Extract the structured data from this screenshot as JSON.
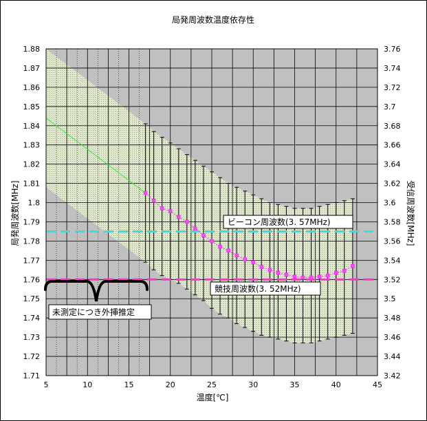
{
  "chart_data": {
    "type": "line",
    "title": "局発周波数温度依存性",
    "xlabel": "温度[℃]",
    "ylabel": "局発周波数[MHz]",
    "y2label": "受信周波数[MHz]",
    "xlim": [
      5,
      45
    ],
    "ylim": [
      1.71,
      1.88
    ],
    "y2lim": [
      3.42,
      3.76
    ],
    "xticks": [
      "5",
      "10",
      "15",
      "20",
      "25",
      "30",
      "35",
      "40",
      "45"
    ],
    "yticks": [
      "1.71",
      "1.72",
      "1.73",
      "1.74",
      "1.75",
      "1.76",
      "1.77",
      "1.78",
      "1.79",
      "1.8",
      "1.81",
      "1.82",
      "1.83",
      "1.84",
      "1.85",
      "1.86",
      "1.87",
      "1.88"
    ],
    "y2ticks": [
      "3.42",
      "3.44",
      "3.46",
      "3.48",
      "3.5",
      "3.52",
      "3.54",
      "3.56",
      "3.58",
      "3.6",
      "3.62",
      "3.64",
      "3.66",
      "3.68",
      "3.7",
      "3.72",
      "3.74",
      "3.76"
    ],
    "grid": true,
    "plot_background": "#c0c0c0",
    "series": [
      {
        "kind": "measured",
        "color": "#ff44ff",
        "x": [
          17,
          18,
          19,
          20,
          21,
          22,
          23,
          24,
          25,
          26,
          27,
          28,
          29,
          30,
          31,
          32,
          33,
          34,
          35,
          36,
          37,
          38,
          39,
          40,
          41,
          42
        ],
        "y": [
          1.805,
          1.801,
          1.797,
          1.7955,
          1.7925,
          1.79,
          1.7865,
          1.783,
          1.78,
          1.777,
          1.775,
          1.7725,
          1.7705,
          1.769,
          1.7665,
          1.765,
          1.7635,
          1.7625,
          1.7615,
          1.761,
          1.761,
          1.7615,
          1.762,
          1.7635,
          1.7645,
          1.767
        ],
        "err_low": [
          1.769,
          1.765,
          1.762,
          1.76,
          1.758,
          1.755,
          1.752,
          1.749,
          1.745,
          1.742,
          1.74,
          1.737,
          1.735,
          1.733,
          1.731,
          1.73,
          1.729,
          1.728,
          1.727,
          1.727,
          1.727,
          1.728,
          1.729,
          1.73,
          1.731,
          1.732
        ],
        "err_high": [
          1.841,
          1.837,
          1.834,
          1.831,
          1.828,
          1.825,
          1.822,
          1.819,
          1.816,
          1.813,
          1.81,
          1.808,
          1.806,
          1.804,
          1.802,
          1.8,
          1.799,
          1.798,
          1.797,
          1.797,
          1.797,
          1.798,
          1.799,
          1.8,
          1.801,
          1.802
        ]
      },
      {
        "kind": "extrapolation",
        "color": "#33ee33",
        "x": [
          5,
          17
        ],
        "y": [
          1.844,
          1.805
        ],
        "band_low": [
          1.808,
          1.769
        ],
        "band_high": [
          1.88,
          1.841
        ]
      },
      {
        "kind": "reference",
        "color": "#33e0e0",
        "y2": 3.57
      },
      {
        "kind": "reference",
        "color": "#ff33cc",
        "y2": 3.52
      }
    ],
    "annotations": {
      "beacon": "ビーコン周波数(3. 57MHz)",
      "competition": "競技周波数(3. 52MHz)",
      "extrapolated": "未測定につき外挿推定"
    }
  }
}
